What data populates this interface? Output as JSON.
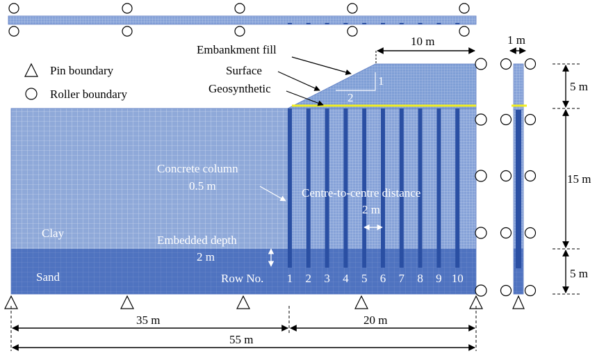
{
  "labels": {
    "embankment_fill": "Embankment fill",
    "surface": "Surface",
    "geosynthetic": "Geosynthetic",
    "slope_v": "1",
    "slope_h": "2",
    "concrete_column": "Concrete column",
    "column_size": "0.5 m",
    "centre_distance": "Centre-to-centre distance",
    "centre_value": "2 m",
    "embedded_depth": "Embedded depth",
    "embedded_value": "2 m",
    "clay": "Clay",
    "sand": "Sand",
    "row_no": "Row No.",
    "rows": [
      "1",
      "2",
      "3",
      "4",
      "5",
      "6",
      "7",
      "8",
      "9",
      "10"
    ]
  },
  "legend": {
    "pin": "Pin boundary",
    "roller": "Roller boundary"
  },
  "dimensions": {
    "top_width": "10 m",
    "side_width": "1 m",
    "embankment_h": "5 m",
    "clay_h": "15 m",
    "sand_h": "5 m",
    "left_width": "35 m",
    "right_width": "20 m",
    "total_width": "55 m"
  },
  "colors": {
    "clay": "#8fa9d9",
    "sand": "#4f73c0",
    "column": "#2a4fa3",
    "embankment": "#7f9fd6",
    "geosynthetic": "#f2ee1f",
    "mesh_line": "#dfe7f6"
  }
}
